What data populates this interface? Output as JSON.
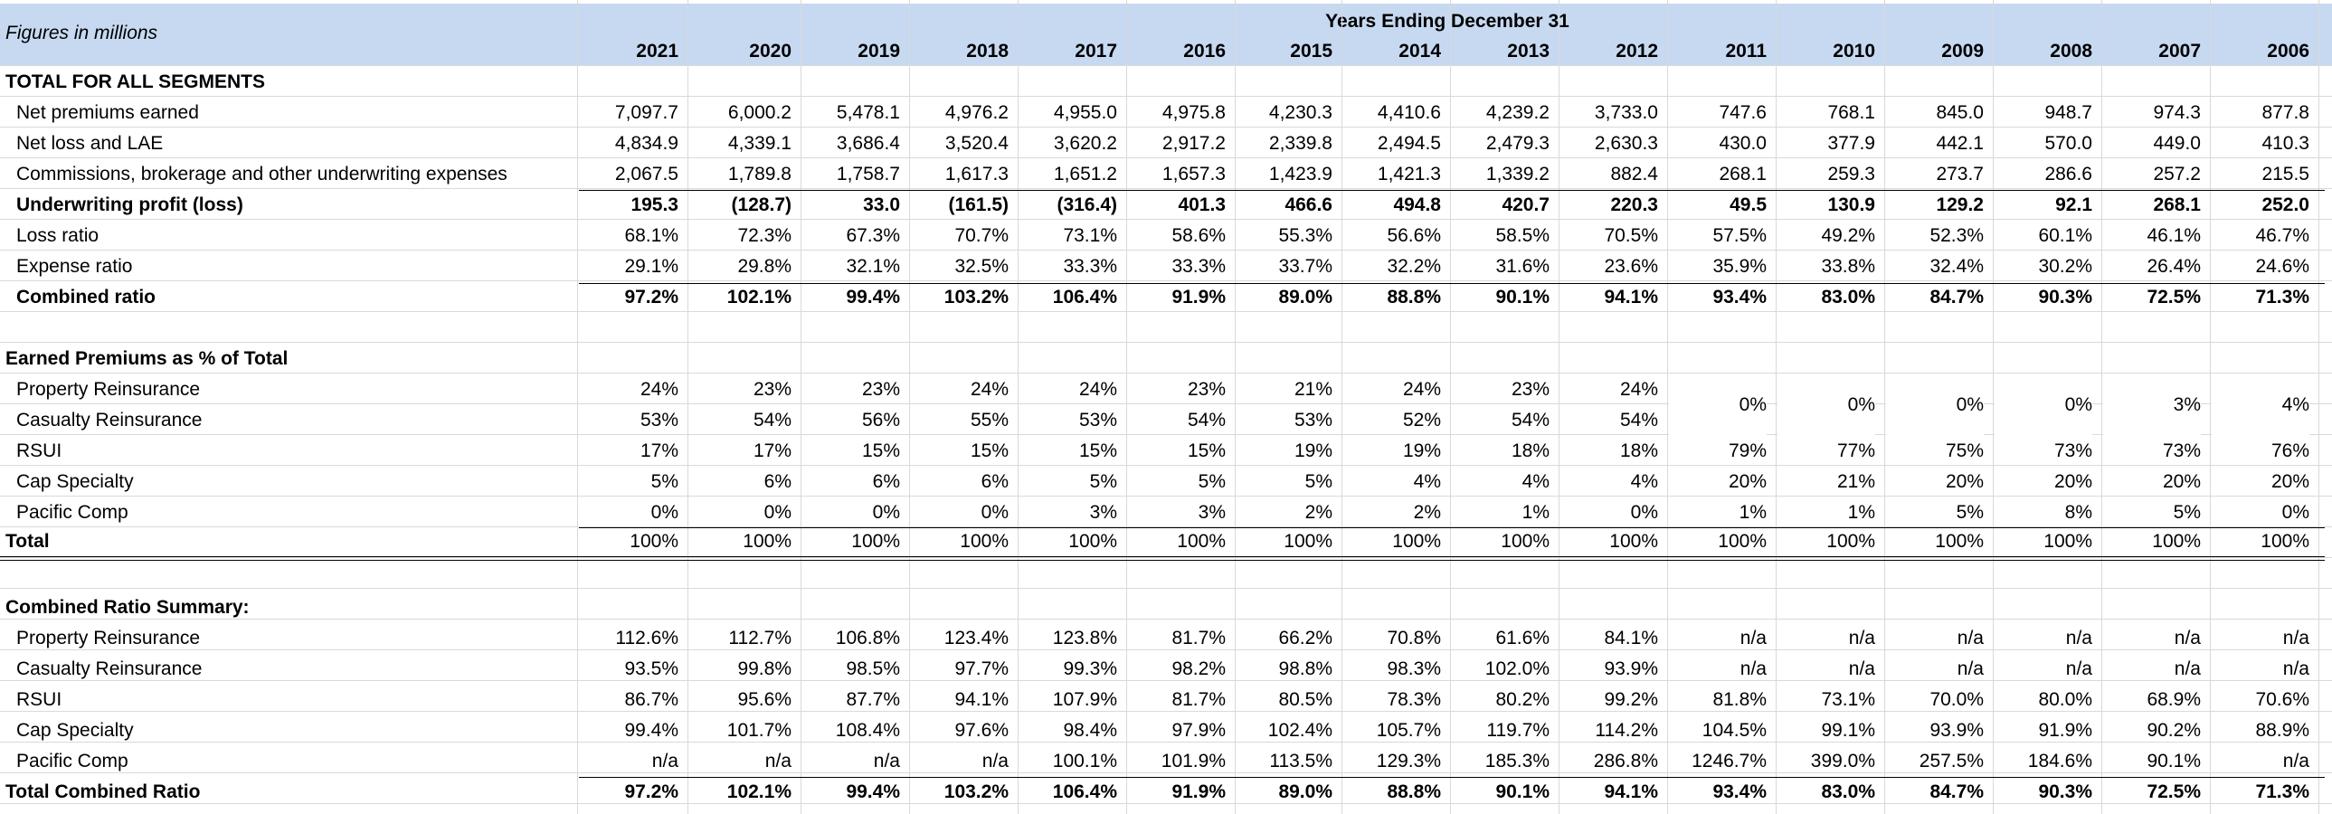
{
  "header": {
    "units_label": "Figures in millions",
    "period_title": "Years Ending December 31",
    "years": [
      "2021",
      "2020",
      "2019",
      "2018",
      "2017",
      "2016",
      "2015",
      "2014",
      "2013",
      "2012",
      "2011",
      "2010",
      "2009",
      "2008",
      "2007",
      "2006"
    ]
  },
  "sections": {
    "total_title": "TOTAL FOR ALL SEGMENTS",
    "earned_title": "Earned Premiums as % of Total",
    "combined_title": "Combined Ratio Summary:"
  },
  "total_rows": [
    {
      "label": "Net premiums earned",
      "bold": false,
      "values": [
        "7,097.7",
        "6,000.2",
        "5,478.1",
        "4,976.2",
        "4,955.0",
        "4,975.8",
        "4,230.3",
        "4,410.6",
        "4,239.2",
        "3,733.0",
        "747.6",
        "768.1",
        "845.0",
        "948.7",
        "974.3",
        "877.8"
      ]
    },
    {
      "label": "Net loss and LAE",
      "bold": false,
      "values": [
        "4,834.9",
        "4,339.1",
        "3,686.4",
        "3,520.4",
        "3,620.2",
        "2,917.2",
        "2,339.8",
        "2,494.5",
        "2,479.3",
        "2,630.3",
        "430.0",
        "377.9",
        "442.1",
        "570.0",
        "449.0",
        "410.3"
      ]
    },
    {
      "label": "Commissions, brokerage and other underwriting expenses",
      "bold": false,
      "values": [
        "2,067.5",
        "1,789.8",
        "1,758.7",
        "1,617.3",
        "1,651.2",
        "1,657.3",
        "1,423.9",
        "1,421.3",
        "1,339.2",
        "882.4",
        "268.1",
        "259.3",
        "273.7",
        "286.6",
        "257.2",
        "215.5"
      ]
    },
    {
      "label": "Underwriting profit (loss)",
      "bold": true,
      "values": [
        "195.3",
        "(128.7)",
        "33.0",
        "(161.5)",
        "(316.4)",
        "401.3",
        "466.6",
        "494.8",
        "420.7",
        "220.3",
        "49.5",
        "130.9",
        "129.2",
        "92.1",
        "268.1",
        "252.0"
      ]
    },
    {
      "label": "Loss ratio",
      "bold": false,
      "values": [
        "68.1%",
        "72.3%",
        "67.3%",
        "70.7%",
        "73.1%",
        "58.6%",
        "55.3%",
        "56.6%",
        "58.5%",
        "70.5%",
        "57.5%",
        "49.2%",
        "52.3%",
        "60.1%",
        "46.1%",
        "46.7%"
      ]
    },
    {
      "label": "Expense ratio",
      "bold": false,
      "values": [
        "29.1%",
        "29.8%",
        "32.1%",
        "32.5%",
        "33.3%",
        "33.3%",
        "33.7%",
        "32.2%",
        "31.6%",
        "23.6%",
        "35.9%",
        "33.8%",
        "32.4%",
        "30.2%",
        "26.4%",
        "24.6%"
      ]
    },
    {
      "label": "Combined ratio",
      "bold": true,
      "values": [
        "97.2%",
        "102.1%",
        "99.4%",
        "103.2%",
        "106.4%",
        "91.9%",
        "89.0%",
        "88.8%",
        "90.1%",
        "94.1%",
        "93.4%",
        "83.0%",
        "84.7%",
        "90.3%",
        "72.5%",
        "71.3%"
      ]
    }
  ],
  "earned_rows": [
    {
      "label": "Property Reinsurance",
      "values": [
        "24%",
        "23%",
        "23%",
        "24%",
        "24%",
        "23%",
        "21%",
        "24%",
        "23%",
        "24%"
      ]
    },
    {
      "label": "Casualty Reinsurance",
      "values": [
        "53%",
        "54%",
        "56%",
        "55%",
        "53%",
        "54%",
        "53%",
        "52%",
        "54%",
        "54%"
      ]
    },
    {
      "label": "RSUI",
      "values": [
        "17%",
        "17%",
        "15%",
        "15%",
        "15%",
        "15%",
        "19%",
        "19%",
        "18%",
        "18%",
        "79%",
        "77%",
        "75%",
        "73%",
        "73%",
        "76%"
      ]
    },
    {
      "label": "Cap Specialty",
      "values": [
        "5%",
        "6%",
        "6%",
        "6%",
        "5%",
        "5%",
        "5%",
        "4%",
        "4%",
        "4%",
        "20%",
        "21%",
        "20%",
        "20%",
        "20%",
        "20%"
      ]
    },
    {
      "label": "Pacific Comp",
      "values": [
        "0%",
        "0%",
        "0%",
        "0%",
        "3%",
        "3%",
        "2%",
        "2%",
        "1%",
        "0%",
        "1%",
        "1%",
        "5%",
        "8%",
        "5%",
        "0%"
      ]
    }
  ],
  "earned_reinsurance_merged": [
    "0%",
    "0%",
    "0%",
    "0%",
    "3%",
    "4%"
  ],
  "earned_total": {
    "label": "Total",
    "values": [
      "100%",
      "100%",
      "100%",
      "100%",
      "100%",
      "100%",
      "100%",
      "100%",
      "100%",
      "100%",
      "100%",
      "100%",
      "100%",
      "100%",
      "100%",
      "100%"
    ]
  },
  "combined_rows": [
    {
      "label": "Property Reinsurance",
      "values": [
        "112.6%",
        "112.7%",
        "106.8%",
        "123.4%",
        "123.8%",
        "81.7%",
        "66.2%",
        "70.8%",
        "61.6%",
        "84.1%",
        "n/a",
        "n/a",
        "n/a",
        "n/a",
        "n/a",
        "n/a"
      ]
    },
    {
      "label": "Casualty Reinsurance",
      "values": [
        "93.5%",
        "99.8%",
        "98.5%",
        "97.7%",
        "99.3%",
        "98.2%",
        "98.8%",
        "98.3%",
        "102.0%",
        "93.9%",
        "n/a",
        "n/a",
        "n/a",
        "n/a",
        "n/a",
        "n/a"
      ]
    },
    {
      "label": "RSUI",
      "values": [
        "86.7%",
        "95.6%",
        "87.7%",
        "94.1%",
        "107.9%",
        "81.7%",
        "80.5%",
        "78.3%",
        "80.2%",
        "99.2%",
        "81.8%",
        "73.1%",
        "70.0%",
        "80.0%",
        "68.9%",
        "70.6%"
      ]
    },
    {
      "label": "Cap Specialty",
      "values": [
        "99.4%",
        "101.7%",
        "108.4%",
        "97.6%",
        "98.4%",
        "97.9%",
        "102.4%",
        "105.7%",
        "119.7%",
        "114.2%",
        "104.5%",
        "99.1%",
        "93.9%",
        "91.9%",
        "90.2%",
        "88.9%"
      ]
    },
    {
      "label": "Pacific Comp",
      "values": [
        "n/a",
        "n/a",
        "n/a",
        "n/a",
        "100.1%",
        "101.9%",
        "113.5%",
        "129.3%",
        "185.3%",
        "286.8%",
        "1246.7%",
        "399.0%",
        "257.5%",
        "184.6%",
        "90.1%",
        "n/a"
      ]
    }
  ],
  "combined_total": {
    "label": "Total Combined Ratio",
    "values": [
      "97.2%",
      "102.1%",
      "99.4%",
      "103.2%",
      "106.4%",
      "91.9%",
      "89.0%",
      "88.8%",
      "90.1%",
      "94.1%",
      "93.4%",
      "83.0%",
      "84.7%",
      "90.3%",
      "72.5%",
      "71.3%"
    ]
  }
}
